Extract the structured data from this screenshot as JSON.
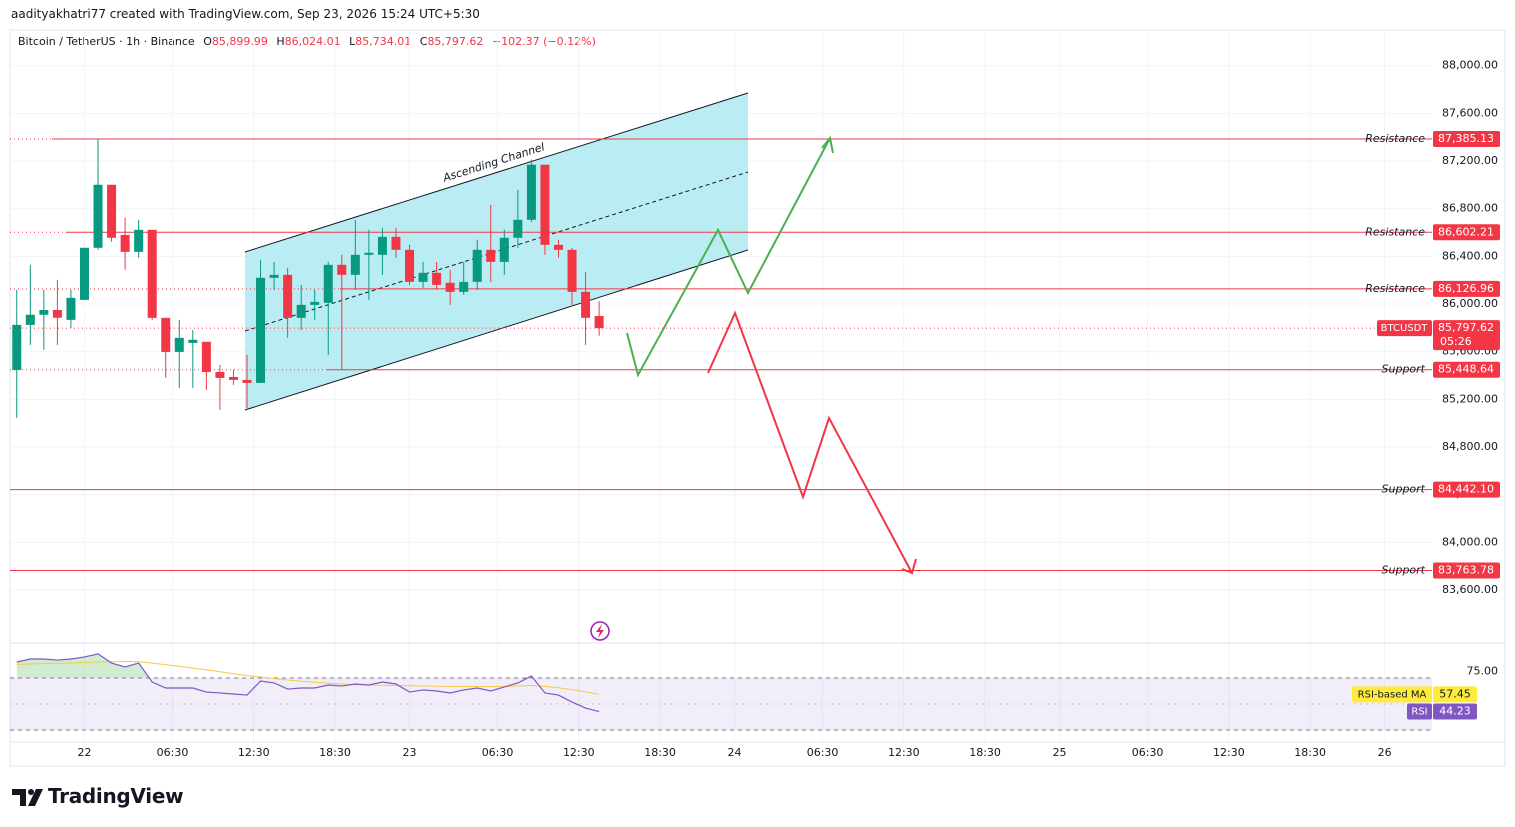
{
  "header": {
    "credit": "aadityakhatri77 created with TradingView.com, Sep 23, 2026 15:24 UTC+5:30",
    "symbol": "Bitcoin / TetherUS · 1h · Binance",
    "ohlc": [
      {
        "key": "O",
        "value": "85,899.99"
      },
      {
        "key": "H",
        "value": "86,024.01"
      },
      {
        "key": "L",
        "value": "85,734.01"
      },
      {
        "key": "C",
        "value": "85,797.62"
      }
    ],
    "change": "−102.37 (−0.12%)"
  },
  "chart_data": [
    {
      "type": "candlestick",
      "x": [
        -5,
        -4,
        -3,
        -2,
        -1,
        0,
        1,
        2,
        3,
        4,
        5,
        6,
        7,
        8,
        9,
        10,
        11,
        12,
        13,
        14,
        15,
        16,
        17,
        18,
        19,
        20,
        21,
        22,
        23,
        24,
        25,
        26,
        27,
        28,
        29,
        30,
        31,
        32,
        33,
        34,
        35,
        36,
        37,
        38
      ],
      "open": [
        85447,
        85825,
        85910,
        85950,
        85867,
        86035,
        86472,
        87001,
        86580,
        86438,
        86623,
        85884,
        85598,
        85674,
        85683,
        85430,
        85388,
        85363,
        85338,
        86220,
        86245,
        85884,
        85993,
        86010,
        86329,
        86245,
        86413,
        86413,
        86564,
        86455,
        86186,
        86262,
        86178,
        86102,
        86186,
        86455,
        86354,
        86556,
        86707,
        87169,
        86497,
        86455,
        86102,
        85899.99
      ],
      "high": [
        86119,
        86329,
        86119,
        86203,
        86119,
        86472,
        87380,
        87001,
        86724,
        86707,
        86623,
        85884,
        85867,
        85783,
        85683,
        85489,
        85447,
        85573,
        86371,
        86354,
        86304,
        86161,
        86119,
        86354,
        86413,
        86707,
        86623,
        86640,
        86640,
        86497,
        86354,
        86354,
        86287,
        86354,
        86539,
        86833,
        86623,
        86959,
        87211,
        87169,
        86539,
        86472,
        86270,
        86024.01
      ],
      "low": [
        85044,
        85657,
        85615,
        85657,
        85800,
        86035,
        86455,
        86522,
        86287,
        86388,
        85867,
        85380,
        85296,
        85296,
        85279,
        85111,
        85321,
        85128,
        85338,
        86119,
        85716,
        85783,
        85867,
        85573,
        85447,
        86119,
        86035,
        86245,
        86388,
        86161,
        86136,
        86119,
        85993,
        86077,
        86119,
        86186,
        86245,
        86472,
        86690,
        86413,
        86388,
        85993,
        85657,
        85734.01
      ],
      "close": [
        85825,
        85910,
        85950,
        85885,
        86052,
        86472,
        87001,
        86556,
        86438,
        86623,
        85884,
        85598,
        85716,
        85700,
        85430,
        85380,
        85363,
        85338,
        86220,
        86245,
        85884,
        85993,
        86018,
        86329,
        86245,
        86413,
        86430,
        86564,
        86455,
        86186,
        86262,
        86161,
        86102,
        86186,
        86455,
        86354,
        86556,
        86707,
        87169,
        86497,
        86455,
        86102,
        85884,
        85797.62
      ],
      "up_color": "#089981",
      "down_color": "#f23645",
      "xlim": [
        -5.5,
        99.5
      ],
      "xticks": [
        {
          "value": 0,
          "label": "22"
        },
        {
          "value": 6.5,
          "label": "06:30"
        },
        {
          "value": 12.5,
          "label": "12:30"
        },
        {
          "value": 18.5,
          "label": "18:30"
        },
        {
          "value": 24,
          "label": "23"
        },
        {
          "value": 30.5,
          "label": "06:30"
        },
        {
          "value": 36.5,
          "label": "12:30"
        },
        {
          "value": 42.5,
          "label": "18:30"
        },
        {
          "value": 48,
          "label": "24"
        },
        {
          "value": 54.5,
          "label": "06:30"
        },
        {
          "value": 60.5,
          "label": "12:30"
        },
        {
          "value": 66.5,
          "label": "18:30"
        },
        {
          "value": 72,
          "label": "25"
        },
        {
          "value": 78.5,
          "label": "06:30"
        },
        {
          "value": 84.5,
          "label": "12:30"
        },
        {
          "value": 90.5,
          "label": "18:30"
        },
        {
          "value": 96,
          "label": "26"
        }
      ],
      "ylim": [
        83155,
        88300
      ],
      "yticks": [
        {
          "value": 88000,
          "label": "88,000.00"
        },
        {
          "value": 87600,
          "label": "87,600.00"
        },
        {
          "value": 87200,
          "label": "87,200.00"
        },
        {
          "value": 86800,
          "label": "86,800.00"
        },
        {
          "value": 86400,
          "label": "86,400.00"
        },
        {
          "value": 86000,
          "label": "86,000.00"
        },
        {
          "value": 85600,
          "label": "85,600.00"
        },
        {
          "value": 85200,
          "label": "85,200.00"
        },
        {
          "value": 84800,
          "label": "84,800.00"
        },
        {
          "value": 84400,
          "label": "84,400.00"
        },
        {
          "value": 84000,
          "label": "84,000.00"
        },
        {
          "value": 83600,
          "label": "83,600.00"
        }
      ],
      "grid": true,
      "levels": [
        {
          "label": "Resistance",
          "value": 87385.13,
          "value_label": "87,385.13"
        },
        {
          "label": "Resistance",
          "value": 86602.21,
          "value_label": "86,602.21"
        },
        {
          "label": "Resistance",
          "value": 86126.96,
          "value_label": "86,126.96"
        },
        {
          "label": "Support",
          "value": 85448.64,
          "value_label": "85,448.64"
        },
        {
          "label": "Support",
          "value": 84442.1,
          "value_label": "84,442.10"
        },
        {
          "label": "Support",
          "value": 83763.78,
          "value_label": "83,763.78"
        }
      ],
      "level_color": "#f23645",
      "last_price": {
        "name": "BTCUSDT",
        "value": 85797.62,
        "value_label": "85,797.62",
        "countdown": "05:26"
      },
      "annotation": "Ascending Channel"
    },
    {
      "type": "line",
      "ylim": [
        20.8,
        96.9
      ],
      "yticks": [
        {
          "value": 75,
          "label": "75.00"
        }
      ],
      "bands": [
        70,
        30
      ],
      "series": [
        {
          "name": "RSI-based MA",
          "color": "#f7c948",
          "label_color": "#ffeb3b",
          "values": [
            80.5,
            80.8,
            81,
            81.2,
            81.5,
            81.8,
            82.3,
            82.5,
            82.7,
            82.5,
            81.5,
            80.2,
            79,
            77.6,
            76.2,
            74.8,
            73.3,
            71.8,
            70.8,
            69.6,
            68.5,
            67.5,
            66.7,
            66,
            65.4,
            64.9,
            64.6,
            64.4,
            64.2,
            64,
            63.8,
            63.7,
            63.6,
            63.5,
            63.5,
            63.4,
            63.5,
            63.8,
            64.3,
            63.6,
            62.5,
            61,
            59.3,
            57.45
          ]
        },
        {
          "name": "RSI",
          "color": "#7e57c2",
          "label_color": "#7e57c2",
          "values": [
            82.3,
            84.6,
            84.6,
            83.8,
            84.6,
            86.2,
            88.5,
            81.5,
            78.5,
            81.5,
            66.9,
            62.3,
            62.3,
            62.3,
            59.2,
            58.5,
            57.7,
            56.9,
            67.7,
            66.2,
            61.5,
            62.3,
            62.3,
            64.6,
            63.8,
            65.4,
            64.6,
            66.9,
            65.4,
            59.2,
            60.8,
            60,
            58.5,
            60.8,
            62.3,
            60,
            63.1,
            66.2,
            71.5,
            58.5,
            56.9,
            51.5,
            46.9,
            44.23
          ]
        }
      ]
    }
  ],
  "footer": {
    "brand": "TradingView"
  }
}
